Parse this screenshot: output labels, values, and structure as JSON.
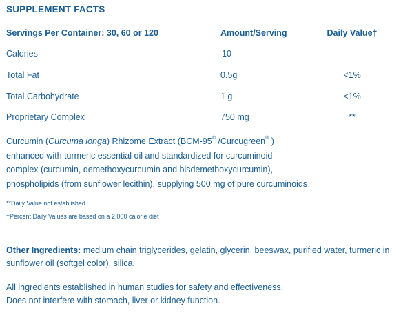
{
  "title": "SUPPLEMENT FACTS",
  "header": {
    "servings": "Servings Per Container: 30, 60 or 120",
    "amount": "Amount/Serving",
    "daily_value": "Daily Value†"
  },
  "rows": [
    {
      "name": "Calories",
      "amount": "10",
      "dv": ""
    },
    {
      "name": "Total Fat",
      "amount": "0.5g",
      "dv": "<1%"
    },
    {
      "name": "Total Carbohydrate",
      "amount": "1 g",
      "dv": "<1%"
    },
    {
      "name": "Proprietary Complex",
      "amount": "750 mg",
      "dv": "**"
    }
  ],
  "description": {
    "line1_a": "Curcumin (",
    "line1_italic": "Curcuma longa",
    "line1_b": ") Rhizome Extract (BCM-95",
    "line1_sup1": "®",
    "line1_c": " /Curcugreen",
    "line1_sup2": "®",
    "line1_d": " )",
    "line2": "enhanced with turmeric essential oil and standardized for curcuminoid",
    "line3": "complex (curcumin, demethoxycurcumin and bisdemethoxycurcumin),",
    "line4": "phospholipids (from sunflower lecithin), supplying 500 mg of pure curcuminoids"
  },
  "footnotes": {
    "dv_not_established": "**Daily Value not established",
    "percent_dv": "†Percent Daily Values are based on a 2,000 calorie diet"
  },
  "other_ingredients": {
    "label": "Other Ingredients:",
    "text": " medium chain triglycerides, gelatin, glycerin, beeswax, purified water, turmeric in sunflower oil (softgel color), silica."
  },
  "closing": {
    "line1": "All ingredients established in human studies for safety and effectiveness.",
    "line2": "Does not interfere with stomach, liver or kidney function."
  }
}
